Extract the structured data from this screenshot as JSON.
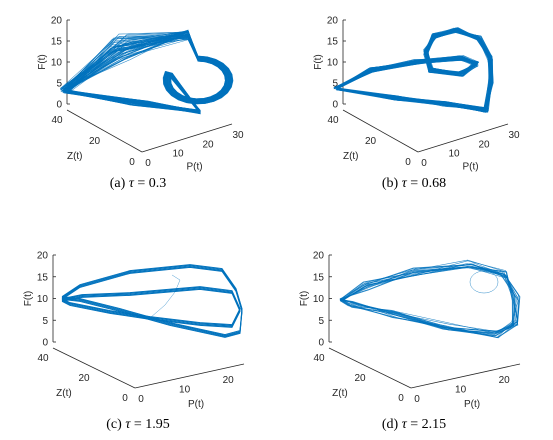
{
  "figure": {
    "panels": [
      {
        "id": "a",
        "caption_prefix": "(a)",
        "tau_symbol": "τ",
        "tau_eq": "= 0.3"
      },
      {
        "id": "b",
        "caption_prefix": "(b)",
        "tau_symbol": "τ",
        "tau_eq": "= 0.68"
      },
      {
        "id": "c",
        "caption_prefix": "(c)",
        "tau_symbol": "τ",
        "tau_eq": "= 1.95"
      },
      {
        "id": "d",
        "caption_prefix": "(d)",
        "tau_symbol": "τ",
        "tau_eq": "= 2.15"
      }
    ]
  },
  "chart_data": [
    {
      "type": "line",
      "subtype": "3d-phase-portrait",
      "caption": "(a) τ = 0.3",
      "xlabel": "P(t)",
      "ylabel": "Z(t)",
      "zlabel": "F(t)",
      "xticks": [
        "0",
        "10",
        "20",
        "30"
      ],
      "yticks": [
        "0",
        "20",
        "40"
      ],
      "zticks": [
        "0",
        "5",
        "10",
        "15",
        "20"
      ],
      "xlim": [
        0,
        30
      ],
      "ylim": [
        0,
        40
      ],
      "zlim": [
        0,
        20
      ],
      "grid": false,
      "line_color": "#0072BD",
      "attractor": "chaotic"
    },
    {
      "type": "line",
      "subtype": "3d-phase-portrait",
      "caption": "(b) τ = 0.68",
      "xlabel": "P(t)",
      "ylabel": "Z(t)",
      "zlabel": "F(t)",
      "xticks": [
        "0",
        "10",
        "20",
        "30"
      ],
      "yticks": [
        "0",
        "20",
        "40"
      ],
      "zticks": [
        "0",
        "5",
        "10",
        "15",
        "20"
      ],
      "xlim": [
        0,
        30
      ],
      "ylim": [
        0,
        40
      ],
      "zlim": [
        0,
        20
      ],
      "grid": false,
      "line_color": "#0072BD",
      "attractor": "chaotic"
    },
    {
      "type": "line",
      "subtype": "3d-phase-portrait",
      "caption": "(c) τ = 1.95",
      "xlabel": "P(t)",
      "ylabel": "Z(t)",
      "zlabel": "F(t)",
      "xticks": [
        "0",
        "10",
        "20"
      ],
      "yticks": [
        "0",
        "20",
        "40"
      ],
      "zticks": [
        "0",
        "5",
        "10",
        "15",
        "20"
      ],
      "xlim": [
        0,
        25
      ],
      "ylim": [
        0,
        40
      ],
      "zlim": [
        0,
        20
      ],
      "grid": false,
      "line_color": "#0072BD",
      "attractor": "periodic"
    },
    {
      "type": "line",
      "subtype": "3d-phase-portrait",
      "caption": "(d) τ = 2.15",
      "xlabel": "P(t)",
      "ylabel": "Z(t)",
      "zlabel": "F(t)",
      "xticks": [
        "0",
        "10",
        "20"
      ],
      "yticks": [
        "0",
        "20",
        "40"
      ],
      "zticks": [
        "0",
        "5",
        "10",
        "15",
        "20"
      ],
      "xlim": [
        0,
        25
      ],
      "ylim": [
        0,
        40
      ],
      "zlim": [
        0,
        20
      ],
      "grid": false,
      "line_color": "#0072BD",
      "attractor": "quasi-periodic"
    }
  ]
}
